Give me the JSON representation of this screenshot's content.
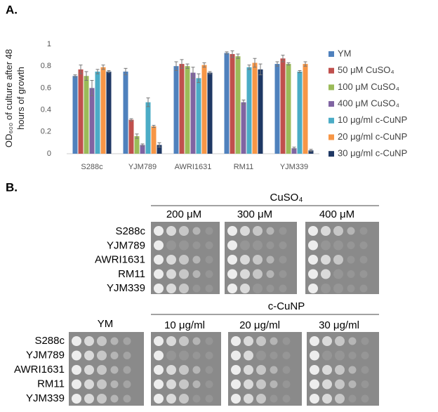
{
  "figure_labels": [
    "A.",
    "B."
  ],
  "chart_data": {
    "type": "bar",
    "ylabel": [
      "OD₆₀₀ of culture after 48",
      "hours of growth"
    ],
    "categories": [
      "S288c",
      "YJM789",
      "AWRI1631",
      "RM11",
      "YJM339"
    ],
    "ylim": [
      0,
      1
    ],
    "yticks": [
      0,
      0.2,
      0.4,
      0.6,
      0.8,
      1
    ],
    "grid": false,
    "legend": "right",
    "series": [
      {
        "name": "YM",
        "color": "#4f81bd",
        "values": [
          0.71,
          0.75,
          0.8,
          0.92,
          0.82
        ],
        "errors": [
          0.01,
          0.03,
          0.04,
          0.01,
          0.02
        ]
      },
      {
        "name": "50 μM CuSO₄",
        "color": "#c0504d",
        "values": [
          0.77,
          0.31,
          0.82,
          0.91,
          0.87
        ],
        "errors": [
          0.04,
          0.01,
          0.04,
          0.03,
          0.03
        ]
      },
      {
        "name": "100 μM CuSO₄",
        "color": "#9bbb59",
        "values": [
          0.71,
          0.16,
          0.8,
          0.89,
          0.82
        ],
        "errors": [
          0.04,
          0.02,
          0.02,
          0.02,
          0.01
        ]
      },
      {
        "name": "400 μM CuSO₄",
        "color": "#8064a2",
        "values": [
          0.6,
          0.08,
          0.74,
          0.47,
          0.05
        ],
        "errors": [
          0.07,
          0.01,
          0.05,
          0.02,
          0.01
        ]
      },
      {
        "name": "10 μg/ml c-CuNP",
        "color": "#4bacc6",
        "values": [
          0.75,
          0.47,
          0.69,
          0.79,
          0.75
        ],
        "errors": [
          0.02,
          0.04,
          0.04,
          0.02,
          0.01
        ]
      },
      {
        "name": "20 μg/ml c-CuNP",
        "color": "#f79646",
        "values": [
          0.79,
          0.25,
          0.81,
          0.83,
          0.82
        ],
        "errors": [
          0.02,
          0.01,
          0.02,
          0.04,
          0.02
        ]
      },
      {
        "name": "30 μg/ml c-CuNP",
        "color": "#1f3864",
        "values": [
          0.75,
          0.08,
          0.74,
          0.77,
          0.03
        ],
        "errors": [
          0.01,
          0.02,
          0.01,
          0.05,
          0.01
        ]
      }
    ]
  },
  "spot_assay": {
    "top": {
      "group": "CuSO₄",
      "conditions": [
        "200 μM",
        "300 μM",
        "400 μM"
      ],
      "strains": [
        "S288c",
        "YJM789",
        "AWRI1631",
        "RM11",
        "YJM339"
      ]
    },
    "bottom": {
      "control": "YM",
      "group": "c-CuNP",
      "conditions": [
        "10 μg/ml",
        "20 μg/ml",
        "30 μg/ml"
      ],
      "strains": [
        "S288c",
        "YJM789",
        "AWRI1631",
        "RM11",
        "YJM339"
      ]
    }
  }
}
